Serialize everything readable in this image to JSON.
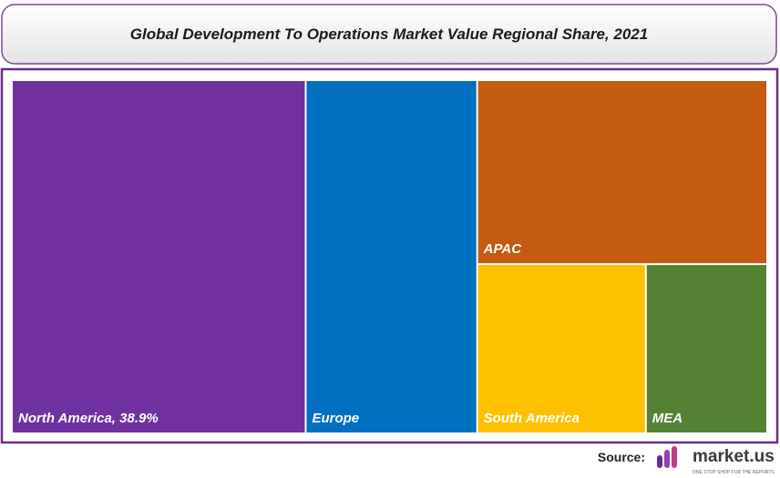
{
  "chart_data": {
    "type": "treemap",
    "title": "Global Development To Operations Market Value Regional Share, 2021",
    "categories": [
      "North America",
      "Europe",
      "APAC",
      "South America",
      "MEA"
    ],
    "values": [
      38.9,
      22.7,
      20.0,
      10.7,
      7.7
    ],
    "value_labels": [
      "North America, 38.9%",
      null,
      null,
      null,
      null
    ],
    "colors": [
      "#7030a0",
      "#0070c0",
      "#c55a11",
      "#ffc000",
      "#548235"
    ]
  },
  "source": {
    "label": "Source:",
    "brand": "market.us",
    "tagline": "ONE STOP SHOP FOR THE REPORTS"
  }
}
